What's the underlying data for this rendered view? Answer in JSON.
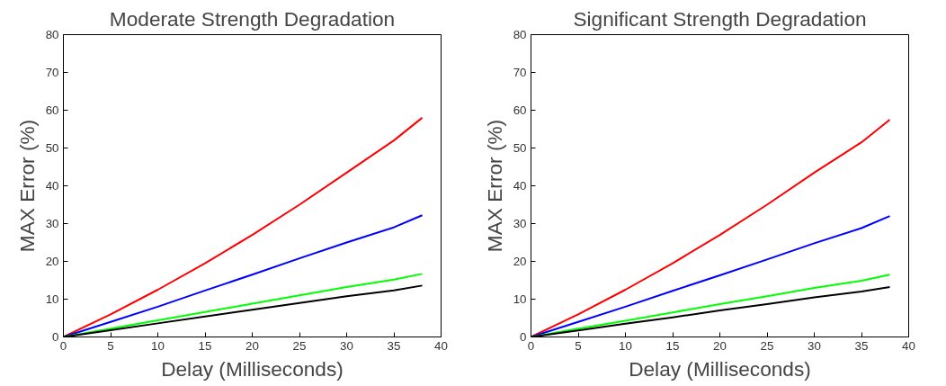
{
  "chart_data": [
    {
      "type": "line",
      "title": "Moderate Strength Degradation",
      "xlabel": "Delay (Milliseconds)",
      "ylabel": "MAX Error (%)",
      "x": [
        0,
        5,
        10,
        15,
        20,
        25,
        30,
        35,
        38
      ],
      "xlim": [
        0,
        40
      ],
      "ylim": [
        0,
        80
      ],
      "xticks": [
        0,
        5,
        10,
        15,
        20,
        25,
        30,
        35,
        40
      ],
      "yticks": [
        0,
        10,
        20,
        30,
        40,
        50,
        60,
        70,
        80
      ],
      "grid": false,
      "series": [
        {
          "color": "#ff0000",
          "values": [
            0,
            6,
            12.5,
            19.5,
            27,
            35,
            43.5,
            52,
            58
          ]
        },
        {
          "color": "#0000ff",
          "values": [
            0,
            4,
            8,
            12.3,
            16.5,
            20.8,
            25,
            29,
            32.2
          ]
        },
        {
          "color": "#00ff00",
          "values": [
            0,
            2.2,
            4.4,
            6.6,
            8.8,
            11,
            13.2,
            15.2,
            16.7
          ]
        },
        {
          "color": "#000000",
          "values": [
            0,
            1.8,
            3.6,
            5.4,
            7.2,
            9,
            10.8,
            12.3,
            13.6
          ]
        }
      ]
    },
    {
      "type": "line",
      "title": "Significant Strength Degradation",
      "xlabel": "Delay (Milliseconds)",
      "ylabel": "MAX Error (%)",
      "x": [
        0,
        5,
        10,
        15,
        20,
        25,
        30,
        35,
        38
      ],
      "xlim": [
        0,
        40
      ],
      "ylim": [
        0,
        80
      ],
      "xticks": [
        0,
        5,
        10,
        15,
        20,
        25,
        30,
        35,
        40
      ],
      "yticks": [
        0,
        10,
        20,
        30,
        40,
        50,
        60,
        70,
        80
      ],
      "grid": false,
      "series": [
        {
          "color": "#ff0000",
          "values": [
            0,
            6,
            12.5,
            19.5,
            27,
            35,
            43.5,
            51.5,
            57.5
          ]
        },
        {
          "color": "#0000ff",
          "values": [
            0,
            4,
            8,
            12.2,
            16.3,
            20.5,
            24.8,
            28.8,
            32
          ]
        },
        {
          "color": "#00ff00",
          "values": [
            0,
            2.2,
            4.3,
            6.5,
            8.7,
            10.8,
            13,
            14.9,
            16.5
          ]
        },
        {
          "color": "#000000",
          "values": [
            0,
            1.7,
            3.5,
            5.2,
            7,
            8.7,
            10.5,
            12,
            13.2
          ]
        }
      ]
    }
  ]
}
